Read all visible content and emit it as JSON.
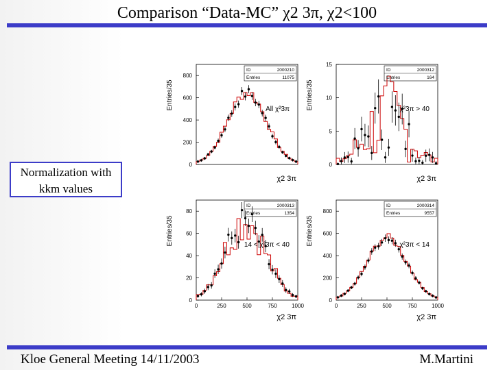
{
  "slide": {
    "title": "Comparison “Data-MC” χ2 3π, χ2<100",
    "footer_left": "Kloe General Meeting 14/11/2003",
    "footer_right": "M.Martini",
    "note": "Normalization with kkm values",
    "colors": {
      "accent_bar": "#3c3cc8",
      "data": "#000000",
      "mc": "#cc0000"
    }
  },
  "chart_data": [
    {
      "type": "histogram",
      "panel": "top-left",
      "label": "All χ²3π",
      "stats": {
        "id_label": "ID",
        "id": "2000210",
        "entries_label": "Entries",
        "entries": "11075"
      },
      "ylabel": "Entries/35",
      "xlabel": "χ2 3π",
      "xlim": [
        0,
        1000
      ],
      "ylim": [
        0,
        900
      ],
      "yticks": [
        0,
        200,
        400,
        600,
        800
      ],
      "xticks": [],
      "series": [
        {
          "name": "data",
          "shape": "gauss",
          "peak": 640,
          "mean": 500,
          "sigma": 190,
          "noise": 0.05
        },
        {
          "name": "MC",
          "shape": "gauss",
          "peak": 650,
          "mean": 500,
          "sigma": 190,
          "noise": 0.05
        }
      ]
    },
    {
      "type": "histogram",
      "panel": "top-right",
      "label": "χ²3π > 40",
      "stats": {
        "id_label": "ID",
        "id": "2000312",
        "entries_label": "Entries",
        "entries": "164"
      },
      "ylabel": "Entries/35",
      "xlabel": "χ2 3π",
      "xlim": [
        0,
        1000
      ],
      "ylim": [
        0,
        15
      ],
      "yticks": [
        0,
        5,
        10,
        15
      ],
      "xticks": [],
      "series": [
        {
          "name": "data",
          "shape": "gauss",
          "peak": 6.5,
          "mean": 500,
          "sigma": 210,
          "noise": 0.55
        },
        {
          "name": "MC",
          "shape": "gauss",
          "peak": 7,
          "mean": 500,
          "sigma": 210,
          "noise": 0.6
        }
      ]
    },
    {
      "type": "histogram",
      "panel": "bottom-left",
      "label": "14 < χ²3π < 40",
      "stats": {
        "id_label": "ID",
        "id": "2000313",
        "entries_label": "Entries",
        "entries": "1354"
      },
      "ylabel": "Entries/35",
      "xlabel": "χ2 3π",
      "xlim": [
        0,
        1000
      ],
      "ylim": [
        0,
        90
      ],
      "yticks": [
        0,
        20,
        40,
        60,
        80
      ],
      "xticks": [
        0,
        250,
        500,
        750,
        1000
      ],
      "series": [
        {
          "name": "data",
          "shape": "gauss",
          "peak": 68,
          "mean": 480,
          "sigma": 200,
          "noise": 0.16
        },
        {
          "name": "MC",
          "shape": "gauss",
          "peak": 72,
          "mean": 480,
          "sigma": 200,
          "noise": 0.18
        }
      ]
    },
    {
      "type": "histogram",
      "panel": "bottom-right",
      "label": "χ²3π < 14",
      "stats": {
        "id_label": "ID",
        "id": "2000314",
        "entries_label": "Entries",
        "entries": "9557"
      },
      "ylabel": "Entries/35",
      "xlabel": "χ2 3π",
      "xlim": [
        0,
        1000
      ],
      "ylim": [
        0,
        900
      ],
      "yticks": [
        0,
        200,
        400,
        600,
        800
      ],
      "xticks": [
        0,
        250,
        500,
        750,
        1000
      ],
      "series": [
        {
          "name": "data",
          "shape": "gauss",
          "peak": 560,
          "mean": 500,
          "sigma": 195,
          "noise": 0.04
        },
        {
          "name": "MC",
          "shape": "gauss",
          "peak": 565,
          "mean": 500,
          "sigma": 195,
          "noise": 0.04
        }
      ]
    }
  ]
}
